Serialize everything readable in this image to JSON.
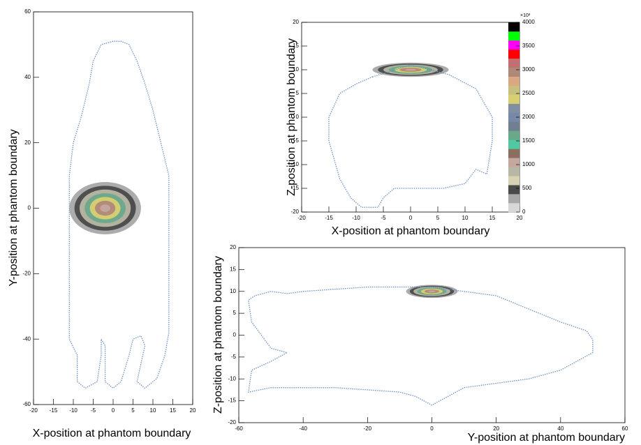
{
  "chart_data": [
    {
      "type": "contour",
      "xlabel": "X-position at phantom boundary",
      "ylabel": "Y-position at phantom boundary",
      "xlim": [
        -20,
        20
      ],
      "xticks": [
        -20,
        -15,
        -10,
        -5,
        0,
        5,
        10,
        15,
        20
      ],
      "ylim": [
        -60,
        60
      ],
      "yticks": [
        -60,
        -40,
        -20,
        0,
        20,
        40,
        60
      ],
      "outline": {
        "color": "#6a8fc8",
        "x": [
          0,
          -3,
          -5,
          -6,
          -8,
          -10,
          -11,
          -11,
          -11,
          -11,
          -9,
          -9,
          -7,
          -4,
          -3,
          -3,
          -2,
          -2,
          0,
          2,
          4,
          5,
          7,
          8,
          6,
          8,
          11,
          13,
          14,
          14,
          14,
          12,
          10,
          8,
          6,
          4,
          2
        ],
        "y": [
          51,
          50,
          45,
          38,
          28,
          20,
          10,
          0,
          -20,
          -40,
          -45,
          -53,
          -55,
          -53,
          -45,
          -40,
          -42,
          -53,
          -55,
          -53,
          -45,
          -40,
          -39,
          -42,
          -53,
          -55,
          -52,
          -45,
          -38,
          -10,
          10,
          20,
          30,
          38,
          45,
          50,
          51
        ]
      },
      "hotspot": {
        "x": -2,
        "y": 0,
        "rx": 9,
        "ry": 8
      }
    },
    {
      "type": "contour",
      "xlabel": "X-position at phantom boundary",
      "ylabel": "Z-position at phantom boundary",
      "xlim": [
        -20,
        20
      ],
      "xticks": [
        -20,
        -15,
        -10,
        -5,
        0,
        5,
        10,
        15,
        20
      ],
      "ylim": [
        -20,
        20
      ],
      "yticks": [
        -20,
        -15,
        -10,
        -5,
        0,
        5,
        10,
        15,
        20
      ],
      "outline": {
        "color": "#6a8fc8",
        "x": [
          -7,
          0,
          7,
          12,
          15,
          15,
          14,
          12,
          10,
          6,
          0,
          -3,
          -4,
          -5,
          -6,
          -9,
          -11,
          -13,
          -15,
          -15,
          -13,
          -10
        ],
        "y": [
          8.5,
          11,
          9,
          6,
          0,
          -5,
          -12,
          -11,
          -14,
          -15,
          -15,
          -15,
          -16,
          -17,
          -19,
          -19,
          -17,
          -13,
          -5,
          0,
          5,
          7
        ]
      },
      "hotspot": {
        "x": 0,
        "y": 10,
        "rx": 7,
        "ry": 1.5
      },
      "colorbar": {
        "zlim": [
          0,
          4000
        ],
        "zticks": [
          0,
          500,
          1000,
          1500,
          2000,
          2500,
          3000,
          3500,
          4000
        ],
        "exponent_label": "×10³",
        "colors": [
          "#d8d8d8",
          "#a8a8a8",
          "#4a4a4a",
          "#d8d2b4",
          "#b8b6a4",
          "#c4a8a0",
          "#8c6e60",
          "#50c8a0",
          "#6aa88c",
          "#708090",
          "#7888a8",
          "#8090a0",
          "#d8d070",
          "#c8c080",
          "#d8a880",
          "#b08878",
          "#c07070",
          "#ff0000",
          "#ff00ff",
          "#00ff00",
          "#000000"
        ]
      }
    },
    {
      "type": "contour",
      "xlabel": "Y-position at phantom boundary",
      "ylabel": "Z-position at phantom boundary",
      "xlim": [
        -60,
        60
      ],
      "xticks": [
        -60,
        -40,
        -20,
        0,
        20,
        40,
        60
      ],
      "ylim": [
        -20,
        20
      ],
      "yticks": [
        -20,
        -15,
        -10,
        -5,
        0,
        5,
        10,
        15,
        20
      ],
      "outline": {
        "color": "#6a8fc8",
        "x": [
          -55,
          -57,
          -56,
          -50,
          -45,
          -50,
          -56,
          -57,
          -50,
          -30,
          -10,
          -5,
          0,
          5,
          10,
          20,
          30,
          40,
          45,
          50,
          50,
          48,
          40,
          30,
          20,
          10,
          0,
          -20,
          -40,
          -45,
          -50
        ],
        "y": [
          9,
          8,
          3,
          -3,
          -4,
          -6,
          -8,
          -13,
          -12,
          -12,
          -13,
          -14,
          -16,
          -14,
          -12,
          -11,
          -10,
          -8,
          -6,
          -4,
          -1,
          1,
          3,
          6,
          9,
          10,
          11,
          11,
          10,
          9.5,
          10
        ]
      },
      "hotspot": {
        "x": 0,
        "y": 10,
        "rx": 8,
        "ry": 1.5
      }
    }
  ]
}
